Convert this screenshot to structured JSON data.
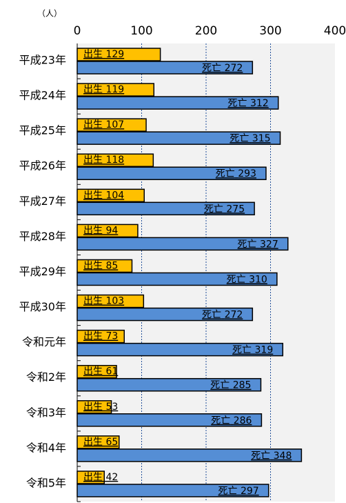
{
  "chart_data": {
    "type": "bar",
    "orientation": "horizontal",
    "unit_label": "（人）",
    "categories": [
      "平成23年",
      "平成24年",
      "平成25年",
      "平成26年",
      "平成27年",
      "平成28年",
      "平成29年",
      "平成30年",
      "令和元年",
      "令和2年",
      "令和3年",
      "令和4年",
      "令和5年"
    ],
    "series": [
      {
        "name": "出生",
        "color": "#ffc000",
        "values": [
          129,
          119,
          107,
          118,
          104,
          94,
          85,
          103,
          73,
          61,
          53,
          65,
          42
        ]
      },
      {
        "name": "死亡",
        "color": "#558ed5",
        "values": [
          272,
          312,
          315,
          293,
          275,
          327,
          310,
          272,
          319,
          285,
          286,
          348,
          297
        ]
      }
    ],
    "xlim": [
      0,
      400
    ],
    "xticks": [
      0,
      100,
      200,
      300,
      400
    ],
    "grid": true
  }
}
